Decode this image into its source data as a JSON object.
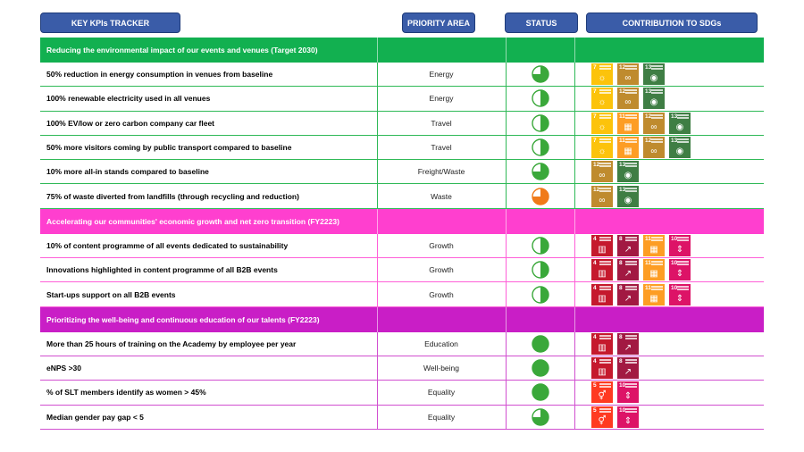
{
  "headers": {
    "kpi": "KEY KPIs  TRACKER",
    "area": "PRIORITY AREA",
    "status": "STATUS",
    "sdg": "CONTRIBUTION TO SDGs"
  },
  "sdg_colors": {
    "4": "#c5192d",
    "5": "#ff3a21",
    "7": "#fcc30b",
    "8": "#a21942",
    "10": "#dd1367",
    "11": "#fd9d24",
    "12": "#bf8b2e",
    "13": "#3f7e44"
  },
  "sdg_glyphs": {
    "4": "▥",
    "5": "⚥",
    "7": "☼",
    "8": "↗",
    "10": "⇕",
    "11": "▦",
    "12": "∞",
    "13": "◉"
  },
  "sections": [
    {
      "title": "Reducing the environmental impact of our events and venues (Target 2030)",
      "color": "#12b050",
      "line_color": "#2fb957",
      "rows": [
        {
          "kpi": "50% reduction in energy consumption in venues from baseline",
          "area": "Energy",
          "status": 0.75,
          "status_color": "#3aa83a",
          "sdgs": [
            "7",
            "12",
            "13"
          ]
        },
        {
          "kpi": "100% renewable electricity used in all venues",
          "area": "Energy",
          "status": 0.5,
          "status_color": "#3aa83a",
          "sdgs": [
            "7",
            "12",
            "13"
          ]
        },
        {
          "kpi": "100% EV/low or zero carbon company car fleet",
          "area": "Travel",
          "status": 0.5,
          "status_color": "#3aa83a",
          "sdgs": [
            "7",
            "11",
            "12",
            "13"
          ]
        },
        {
          "kpi": "50% more visitors coming by public transport compared to baseline",
          "area": "Travel",
          "status": 0.5,
          "status_color": "#3aa83a",
          "sdgs": [
            "7",
            "11",
            "12",
            "13"
          ]
        },
        {
          "kpi": "10% more all-in stands compared to baseline",
          "area": "Freight/Waste",
          "status": 0.75,
          "status_color": "#3aa83a",
          "sdgs": [
            "12",
            "13"
          ]
        },
        {
          "kpi": "75% of waste diverted from landfills (through recycling and reduction)",
          "area": "Waste",
          "status": 0.75,
          "status_color": "#f07a1a",
          "sdgs": [
            "12",
            "13"
          ]
        }
      ]
    },
    {
      "title": "Accelerating our communities' economic growth and net zero transition (FY2223)",
      "color": "#ff3fcf",
      "line_color": "#ff5fd8",
      "rows": [
        {
          "kpi": "10% of content programme of all events dedicated to sustainability",
          "area": "Growth",
          "status": 0.5,
          "status_color": "#3aa83a",
          "sdgs": [
            "4",
            "8",
            "11",
            "10"
          ]
        },
        {
          "kpi": "Innovations highlighted in content programme of all B2B events",
          "area": "Growth",
          "status": 0.5,
          "status_color": "#3aa83a",
          "sdgs": [
            "4",
            "8",
            "11",
            "10"
          ]
        },
        {
          "kpi": "Start-ups support on all B2B events",
          "area": "Growth",
          "status": 0.5,
          "status_color": "#3aa83a",
          "sdgs": [
            "4",
            "8",
            "11",
            "10"
          ]
        }
      ]
    },
    {
      "title": "Prioritizing the well-being and continuous education of our talents (FY2223)",
      "color": "#c91ec6",
      "line_color": "#d14fd0",
      "rows": [
        {
          "kpi": "More than 25 hours of training on the Academy by employee per year",
          "area": "Education",
          "status": 1,
          "status_color": "#3aa83a",
          "sdgs": [
            "4",
            "8"
          ]
        },
        {
          "kpi": "eNPS >30",
          "area": "Well-being",
          "status": 1,
          "status_color": "#3aa83a",
          "sdgs": [
            "4",
            "8"
          ]
        },
        {
          "kpi": "% of SLT members identify as women > 45%",
          "area": "Equality",
          "status": 1,
          "status_color": "#3aa83a",
          "sdgs": [
            "5",
            "10"
          ]
        },
        {
          "kpi": "Median gender pay gap < 5",
          "area": "Equality",
          "status": 0.75,
          "status_color": "#3aa83a",
          "sdgs": [
            "5",
            "10"
          ]
        }
      ]
    }
  ]
}
